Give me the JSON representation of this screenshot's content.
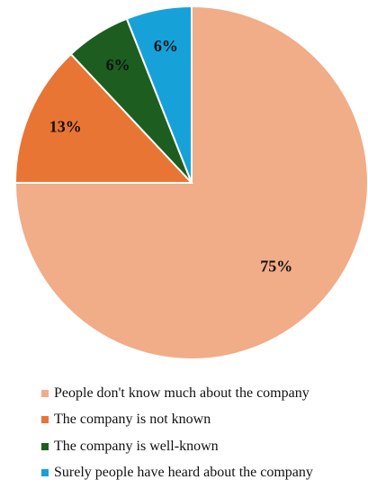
{
  "chart_data": {
    "type": "pie",
    "title": "",
    "categories": [
      "People don't know much about the company",
      "The company is not known",
      "The company is well-known",
      "Surely people have heard about the company"
    ],
    "values": [
      75,
      13,
      6,
      6
    ],
    "labels": [
      "75%",
      "13%",
      "6%",
      "6%"
    ],
    "colors": [
      "#F1AC88",
      "#E97535",
      "#1D5E20",
      "#17A1D9"
    ],
    "legend_position": "bottom"
  }
}
